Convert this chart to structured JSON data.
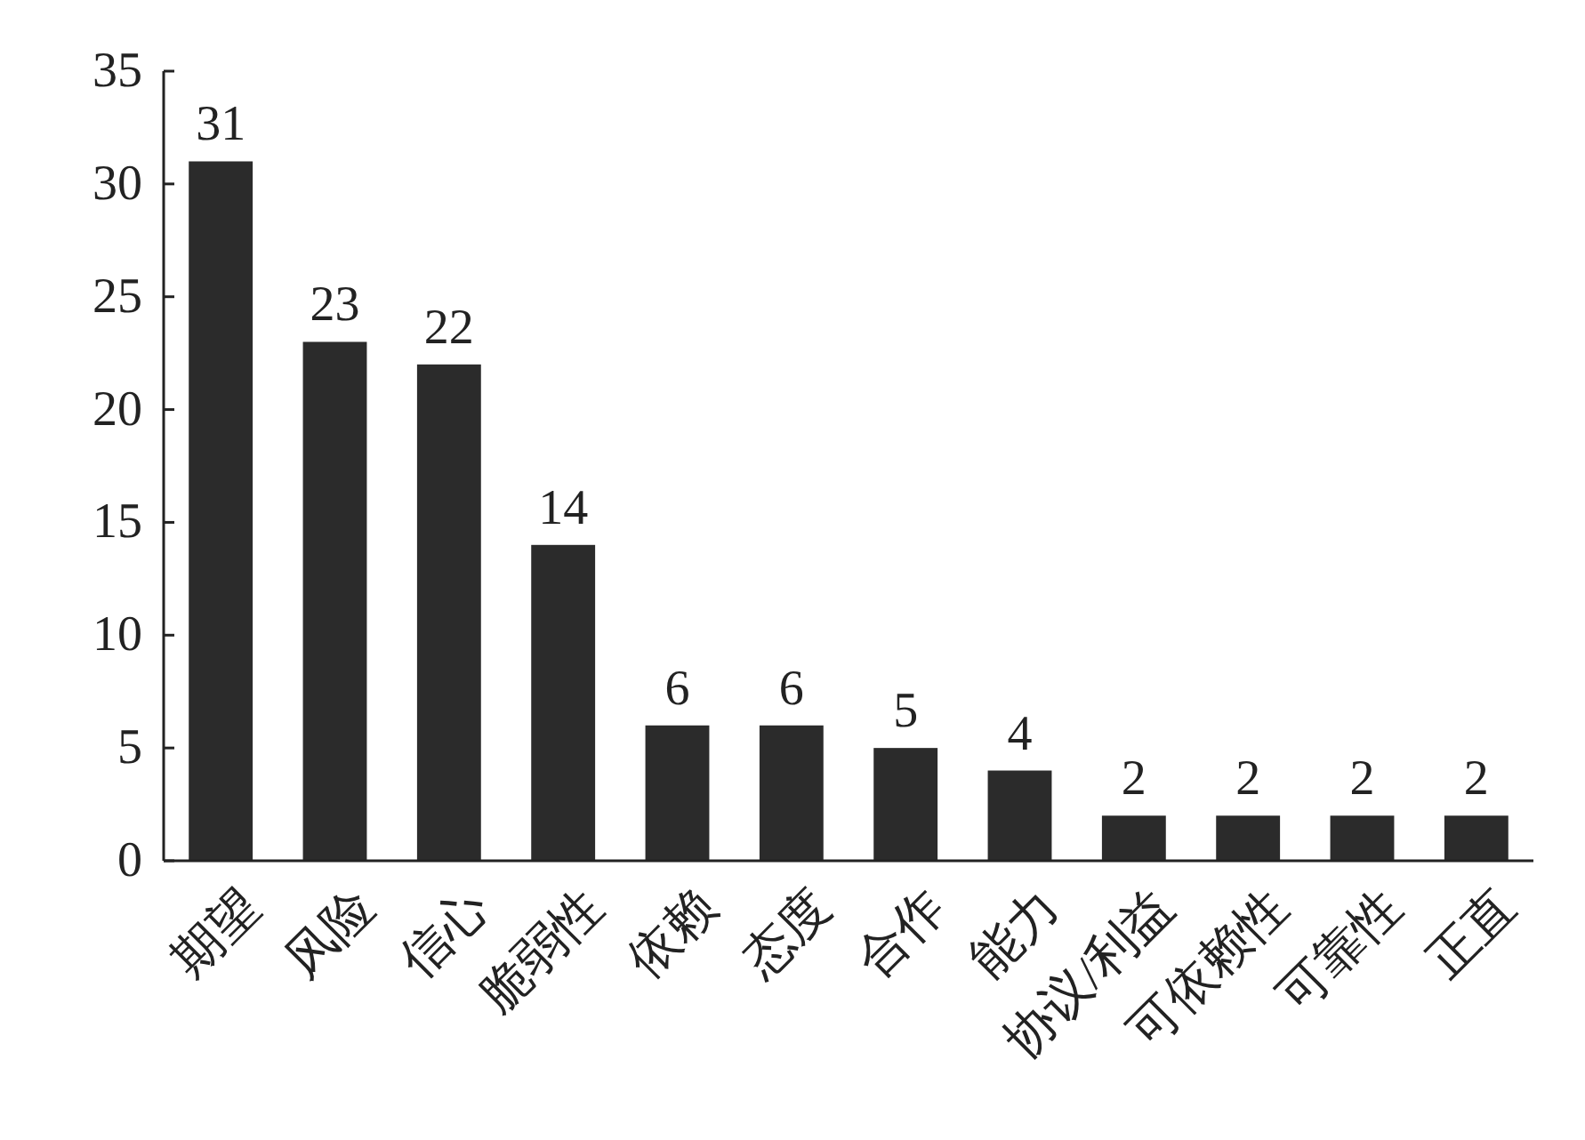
{
  "chart_data": {
    "type": "bar",
    "categories": [
      "期望",
      "风险",
      "信心",
      "脆弱性",
      "依赖",
      "态度",
      "合作",
      "能力",
      "协议/利益",
      "可依赖性",
      "可靠性",
      "正直"
    ],
    "values": [
      31,
      23,
      22,
      14,
      6,
      6,
      5,
      4,
      2,
      2,
      2,
      2
    ],
    "color": "#2b2b2b",
    "ylim": [
      0,
      35
    ],
    "yticks": [
      0,
      5,
      10,
      15,
      20,
      25,
      30,
      35
    ],
    "grid": false,
    "data_labels": true
  }
}
